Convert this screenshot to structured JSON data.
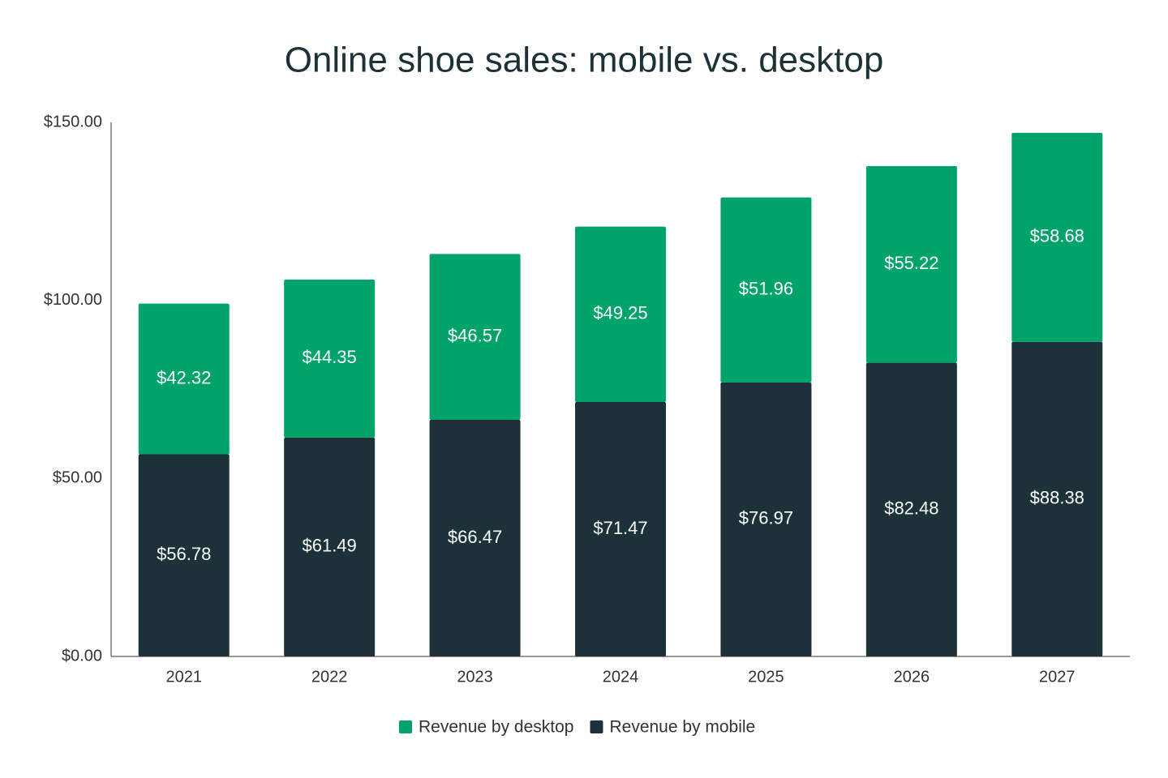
{
  "chart_data": {
    "type": "stacked-bar",
    "title": "Online shoe sales: mobile vs. desktop",
    "categories": [
      "2021",
      "2022",
      "2023",
      "2024",
      "2025",
      "2026",
      "2027"
    ],
    "series": [
      {
        "name": "Revenue by desktop",
        "color": "#00a36a",
        "values": [
          42.32,
          44.35,
          46.57,
          49.25,
          51.96,
          55.22,
          58.68
        ],
        "value_labels": [
          "$42.32",
          "$44.35",
          "$46.57",
          "$49.25",
          "$51.96",
          "$55.22",
          "$58.68"
        ]
      },
      {
        "name": "Revenue by mobile",
        "color": "#1c3238",
        "values": [
          56.78,
          61.49,
          66.47,
          71.47,
          76.97,
          82.48,
          88.38
        ],
        "value_labels": [
          "$56.78",
          "$61.49",
          "$66.47",
          "$71.47",
          "$76.97",
          "$82.48",
          "$88.38"
        ]
      }
    ],
    "ylim": [
      0,
      150
    ],
    "yticks": [
      {
        "value": 0,
        "label": "$0.00"
      },
      {
        "value": 50,
        "label": "$50.00"
      },
      {
        "value": 100,
        "label": "$100.00"
      },
      {
        "value": 150,
        "label": "$150.00"
      }
    ],
    "grid": false,
    "legend": "bottom"
  }
}
